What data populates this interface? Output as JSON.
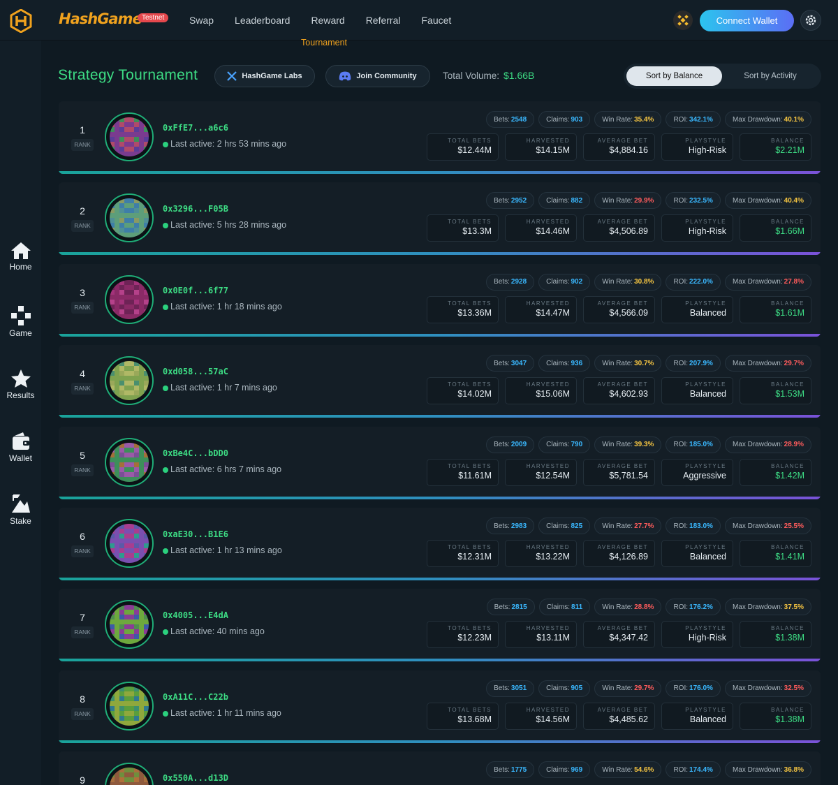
{
  "header": {
    "brand": "HashGame",
    "badge": "Testnet",
    "nav": [
      "Tournament",
      "Swap",
      "Leaderboard",
      "Reward",
      "Referral",
      "Faucet"
    ],
    "active_nav": "Tournament",
    "connect_label": "Connect Wallet",
    "icons": [
      "hashgame-logo-icon",
      "bnb-icon",
      "gear-icon"
    ]
  },
  "sidebar": {
    "items": [
      {
        "label": "Home",
        "icon": "home-icon"
      },
      {
        "label": "Game",
        "icon": "gamepad-icon"
      },
      {
        "label": "Results",
        "icon": "star-icon"
      },
      {
        "label": "Wallet",
        "icon": "wallet-icon"
      },
      {
        "label": "Stake",
        "icon": "stake-icon"
      }
    ]
  },
  "page": {
    "title": "Strategy Tournament",
    "labs_label": "HashGame Labs",
    "community_label": "Join Community",
    "volume_label": "Total Volume:",
    "volume_value": "$1.66B",
    "sort_balance": "Sort by Balance",
    "sort_activity": "Sort by Activity"
  },
  "labels": {
    "rank": "RANK",
    "bets": "Bets:",
    "claims": "Claims:",
    "win_rate": "Win Rate:",
    "roi": "ROI:",
    "max_drawdown": "Max Drawdown:",
    "total_bets": "TOTAL BETS",
    "harvested": "HARVESTED",
    "average_bet": "AVERAGE BET",
    "playstyle": "PLAYSTYLE",
    "balance": "BALANCE"
  },
  "colors": {
    "accent_green": "#3ddc84",
    "bets": "#3ab8ff",
    "win_good": "#f5c542",
    "win_bad": "#ff5c5c",
    "roi": "#3ab8ff",
    "drawdown_high": "#ff5c5c",
    "drawdown_mid": "#f5c542"
  },
  "players": [
    {
      "rank": "1",
      "address": "0xFfE7...a6c6",
      "last_active": "Last active: 2 hrs 53 mins ago",
      "bets": "2548",
      "claims": "903",
      "win_rate": "35.4%",
      "roi": "342.1%",
      "max_drawdown": "40.1%",
      "total_bets": "$12.44M",
      "harvested": "$14.15M",
      "average_bet": "$4,884.16",
      "playstyle": "High-Risk",
      "balance": "$2.21M",
      "palette": [
        "#7a3b8f",
        "#3d8f5a",
        "#b04a6a",
        "#5a3d99"
      ]
    },
    {
      "rank": "2",
      "address": "0x3296...F05B",
      "last_active": "Last active: 5 hrs 28 mins ago",
      "bets": "2952",
      "claims": "882",
      "win_rate": "29.9%",
      "roi": "232.5%",
      "max_drawdown": "40.4%",
      "total_bets": "$13.3M",
      "harvested": "$14.46M",
      "average_bet": "$4,506.89",
      "playstyle": "High-Risk",
      "balance": "$1.66M",
      "palette": [
        "#4f8f96",
        "#5d9e7a",
        "#8a9a62",
        "#3e7ea8"
      ]
    },
    {
      "rank": "3",
      "address": "0x0E0f...6f77",
      "last_active": "Last active: 1 hr 18 mins ago",
      "bets": "2928",
      "claims": "902",
      "win_rate": "30.8%",
      "roi": "222.0%",
      "max_drawdown": "27.8%",
      "total_bets": "$13.36M",
      "harvested": "$14.47M",
      "average_bet": "$4,566.09",
      "playstyle": "Balanced",
      "balance": "$1.61M",
      "palette": [
        "#8a2a66",
        "#a3327a",
        "#6e2356",
        "#b5418a"
      ]
    },
    {
      "rank": "4",
      "address": "0xd058...57aC",
      "last_active": "Last active: 1 hr 7 mins ago",
      "bets": "3047",
      "claims": "936",
      "win_rate": "30.7%",
      "roi": "207.9%",
      "max_drawdown": "29.7%",
      "total_bets": "$14.02M",
      "harvested": "$15.06M",
      "average_bet": "$4,602.93",
      "playstyle": "Balanced",
      "balance": "$1.53M",
      "palette": [
        "#9aa85a",
        "#7fa24f",
        "#4a8f6e",
        "#b0b866"
      ]
    },
    {
      "rank": "5",
      "address": "0xBe4C...bDD0",
      "last_active": "Last active: 6 hrs 7 mins ago",
      "bets": "2009",
      "claims": "790",
      "win_rate": "39.3%",
      "roi": "185.0%",
      "max_drawdown": "28.9%",
      "total_bets": "$11.61M",
      "harvested": "$12.54M",
      "average_bet": "$5,781.54",
      "playstyle": "Aggressive",
      "balance": "$1.42M",
      "palette": [
        "#7a4f96",
        "#3d8f5a",
        "#a3703a",
        "#9a5aa8"
      ]
    },
    {
      "rank": "6",
      "address": "0xaE30...B1E6",
      "last_active": "Last active: 1 hr 13 mins ago",
      "bets": "2983",
      "claims": "825",
      "win_rate": "27.7%",
      "roi": "183.0%",
      "max_drawdown": "25.5%",
      "total_bets": "$12.31M",
      "harvested": "$13.22M",
      "average_bet": "$4,126.89",
      "playstyle": "Balanced",
      "balance": "$1.41M",
      "palette": [
        "#5a5aa8",
        "#a83d8f",
        "#2f9a8f",
        "#7a4fb0"
      ]
    },
    {
      "rank": "7",
      "address": "0x4005...E4dA",
      "last_active": "Last active: 40 mins ago",
      "bets": "2815",
      "claims": "811",
      "win_rate": "28.8%",
      "roi": "176.2%",
      "max_drawdown": "37.5%",
      "total_bets": "$12.23M",
      "harvested": "$13.11M",
      "average_bet": "$4,347.42",
      "playstyle": "High-Risk",
      "balance": "$1.38M",
      "palette": [
        "#4f8f4f",
        "#8a3d96",
        "#3d5aa8",
        "#6ea83d"
      ]
    },
    {
      "rank": "8",
      "address": "0xA11C...C22b",
      "last_active": "Last active: 1 hr 11 mins ago",
      "bets": "3051",
      "claims": "905",
      "win_rate": "29.7%",
      "roi": "176.0%",
      "max_drawdown": "32.5%",
      "total_bets": "$13.68M",
      "harvested": "$14.56M",
      "average_bet": "$4,485.62",
      "playstyle": "Balanced",
      "balance": "$1.38M",
      "palette": [
        "#3d8f6e",
        "#5a9e3d",
        "#2f7a8f",
        "#8fa83d"
      ]
    },
    {
      "rank": "9",
      "address": "0x550A...d13D",
      "last_active": "",
      "bets": "1775",
      "claims": "969",
      "win_rate": "54.6%",
      "roi": "174.4%",
      "max_drawdown": "36.8%",
      "total_bets": "",
      "harvested": "",
      "average_bet": "",
      "playstyle": "",
      "balance": "",
      "palette": [
        "#8f5a3d",
        "#a86e3d",
        "#6e8f3d",
        "#b0703a"
      ]
    }
  ]
}
